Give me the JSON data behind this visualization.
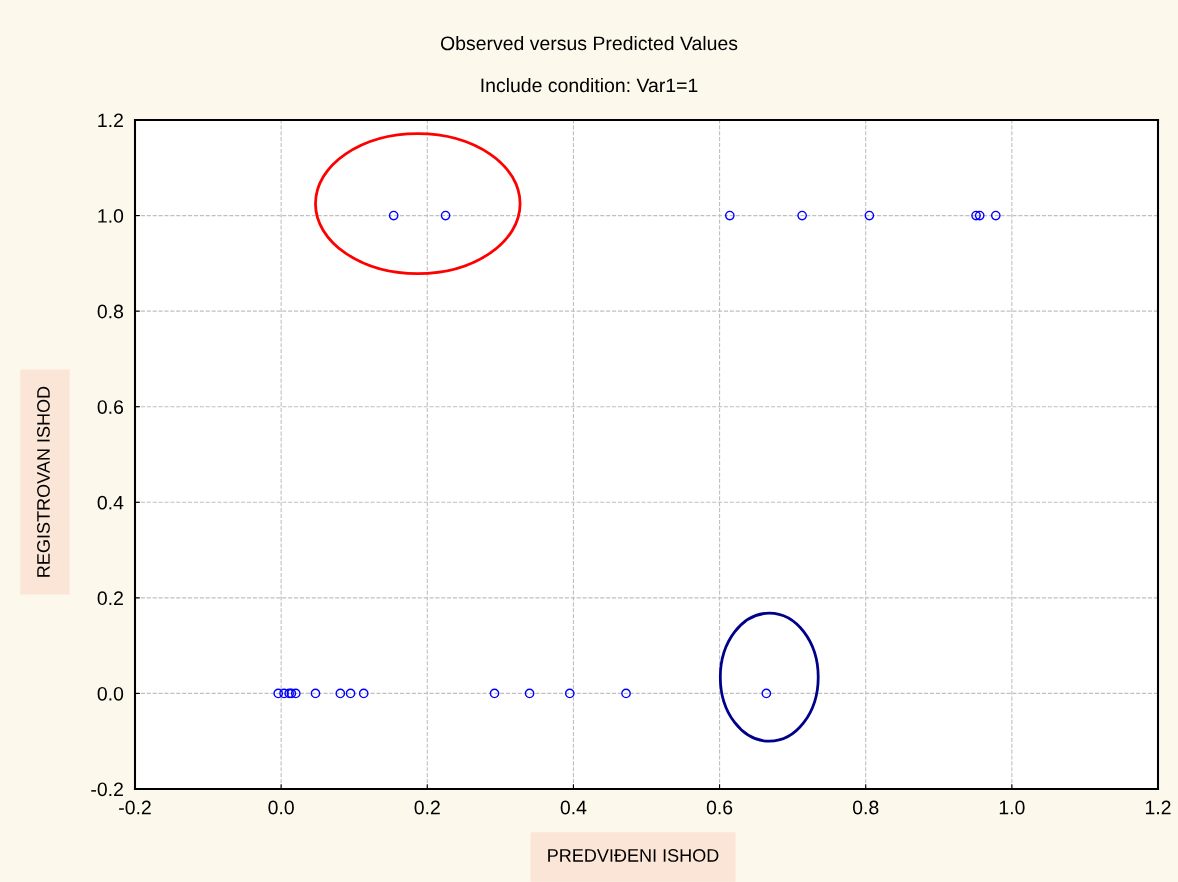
{
  "chart_data": {
    "type": "scatter",
    "title": "Observed versus Predicted Values",
    "subtitle": "Include condition: Var1=1",
    "xlabel": "PREDVIĐENI ISHOD",
    "ylabel": "REGISTROVAN ISHOD",
    "series": [
      {
        "color": "#0000ff",
        "x": [
          0.154,
          0.225,
          0.614,
          0.713,
          0.805,
          0.951,
          0.956,
          0.978,
          -0.004,
          0.004,
          0.011,
          0.014,
          0.02,
          0.047,
          0.081,
          0.095,
          0.113,
          0.292,
          0.34,
          0.395,
          0.472,
          0.664
        ],
        "values": [
          1,
          1,
          1,
          1,
          1,
          1,
          1,
          1,
          0,
          0,
          0,
          0,
          0,
          0,
          0,
          0,
          0,
          0,
          0,
          0,
          0,
          0
        ]
      }
    ],
    "xlim": [
      -0.2,
      1.2
    ],
    "ylim": [
      -0.2,
      1.2
    ],
    "xticks": [
      {
        "value": -0.2,
        "label": "-0.2"
      },
      {
        "value": 0,
        "label": "0.0"
      },
      {
        "value": 0.2,
        "label": "0.2"
      },
      {
        "value": 0.4,
        "label": "0.4"
      },
      {
        "value": 0.6,
        "label": "0.6"
      },
      {
        "value": 0.8,
        "label": "0.8"
      },
      {
        "value": 1,
        "label": "1.0"
      },
      {
        "value": 1.2,
        "label": "1.2"
      }
    ],
    "yticks": [
      {
        "value": -0.2,
        "label": "-0.2"
      },
      {
        "value": 0,
        "label": "0.0"
      },
      {
        "value": 0.2,
        "label": "0.2"
      },
      {
        "value": 0.4,
        "label": "0.4"
      },
      {
        "value": 0.6,
        "label": "0.6"
      },
      {
        "value": 0.8,
        "label": "0.8"
      },
      {
        "value": 1,
        "label": "1.0"
      },
      {
        "value": 1.2,
        "label": "1.2"
      }
    ],
    "grid": true,
    "marker": "circle"
  }
}
